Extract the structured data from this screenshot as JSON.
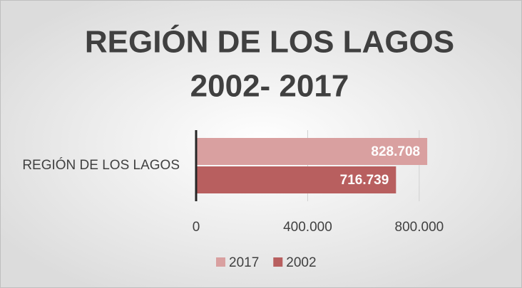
{
  "chart_data": {
    "type": "bar",
    "orientation": "horizontal",
    "title": [
      "REGIÓN DE LOS LAGOS",
      "2002- 2017"
    ],
    "categories": [
      "REGIÓN DE LOS LAGOS"
    ],
    "series": [
      {
        "name": "2017",
        "color": "#d9a0a0",
        "values": [
          828708
        ],
        "value_labels": [
          "828.708"
        ]
      },
      {
        "name": "2002",
        "color": "#b85f5f",
        "values": [
          716739
        ],
        "value_labels": [
          "716.739"
        ]
      }
    ],
    "xlim": [
      0,
      900000
    ],
    "xticks": [
      0,
      {
        "value": 400000,
        "label": "400.000"
      },
      {
        "value": 800000,
        "label": "800.000"
      }
    ],
    "grid": true,
    "legend": "bottom"
  }
}
